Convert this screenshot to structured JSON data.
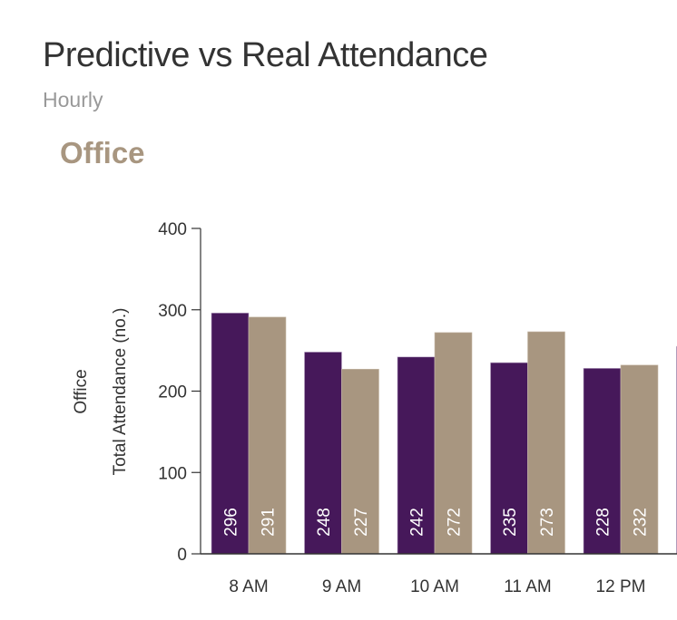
{
  "header": {
    "title": "Predictive vs Real Attendance",
    "subtitle": "Hourly",
    "section": "Office"
  },
  "chart_data": {
    "type": "bar",
    "categories": [
      "8 AM",
      "9 AM",
      "10 AM",
      "11 AM",
      "12 PM",
      ""
    ],
    "series": [
      {
        "values": [
          296,
          248,
          242,
          235,
          228,
          255
        ],
        "color": "#46185a"
      },
      {
        "values": [
          291,
          227,
          272,
          273,
          232,
          null
        ],
        "color": "#a89680"
      }
    ],
    "ylabel": "Total Attendance (no.)",
    "facet_label": "Office",
    "ylim": [
      0,
      400
    ],
    "yticks": [
      0,
      100,
      200,
      300,
      400
    ],
    "grid": false,
    "data_labels": true
  }
}
